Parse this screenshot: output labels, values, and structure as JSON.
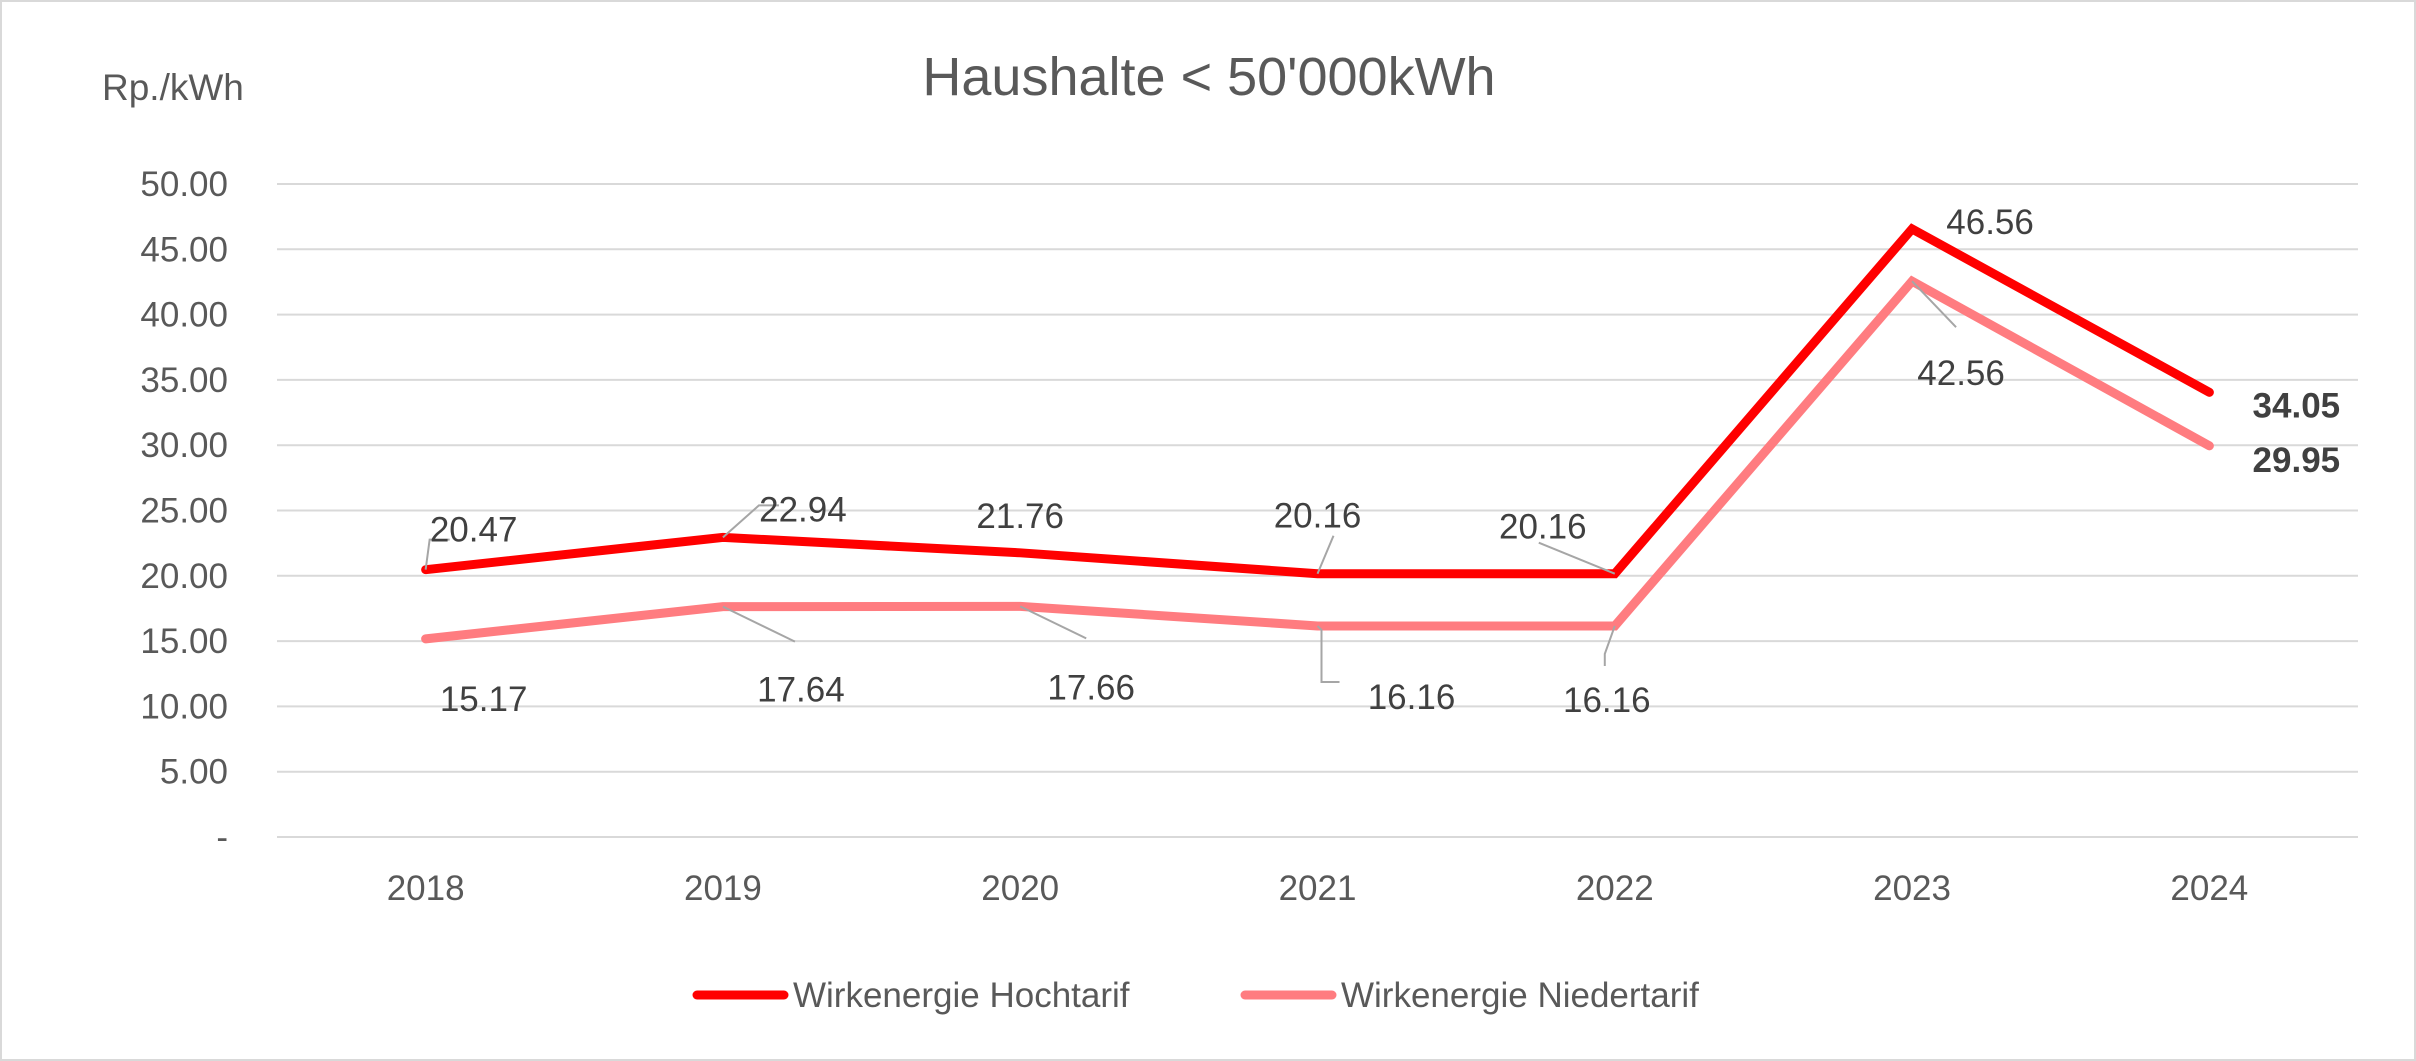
{
  "chart_data": {
    "type": "line",
    "title": "Haushalte < 50'000kWh",
    "ylabel": "Rp./kWh",
    "xlabel": "",
    "categories": [
      "2018",
      "2019",
      "2020",
      "2021",
      "2022",
      "2023",
      "2024"
    ],
    "ylim": [
      0,
      50
    ],
    "y_ticks": [
      0,
      5,
      10,
      15,
      20,
      25,
      30,
      35,
      40,
      45,
      50
    ],
    "y_tick_labels": [
      "-",
      "5.00",
      "10.00",
      "15.00",
      "20.00",
      "25.00",
      "30.00",
      "35.00",
      "40.00",
      "45.00",
      "50.00"
    ],
    "grid": true,
    "legend_position": "bottom",
    "series": [
      {
        "name": "Wirkenergie Hochtarif",
        "color": "#ff0000",
        "values": [
          20.47,
          22.94,
          21.76,
          20.16,
          20.16,
          46.56,
          34.05
        ],
        "data_labels": [
          "20.47",
          "22.94",
          "21.76",
          "20.16",
          "20.16",
          "46.56",
          "34.05"
        ]
      },
      {
        "name": "Wirkenergie Niedertarif",
        "color": "#ff7c80",
        "values": [
          15.17,
          17.64,
          17.66,
          16.16,
          16.16,
          42.56,
          29.95
        ],
        "data_labels": [
          "15.17",
          "17.64",
          "17.66",
          "16.16",
          "16.16",
          "42.56",
          "29.95"
        ]
      }
    ]
  }
}
